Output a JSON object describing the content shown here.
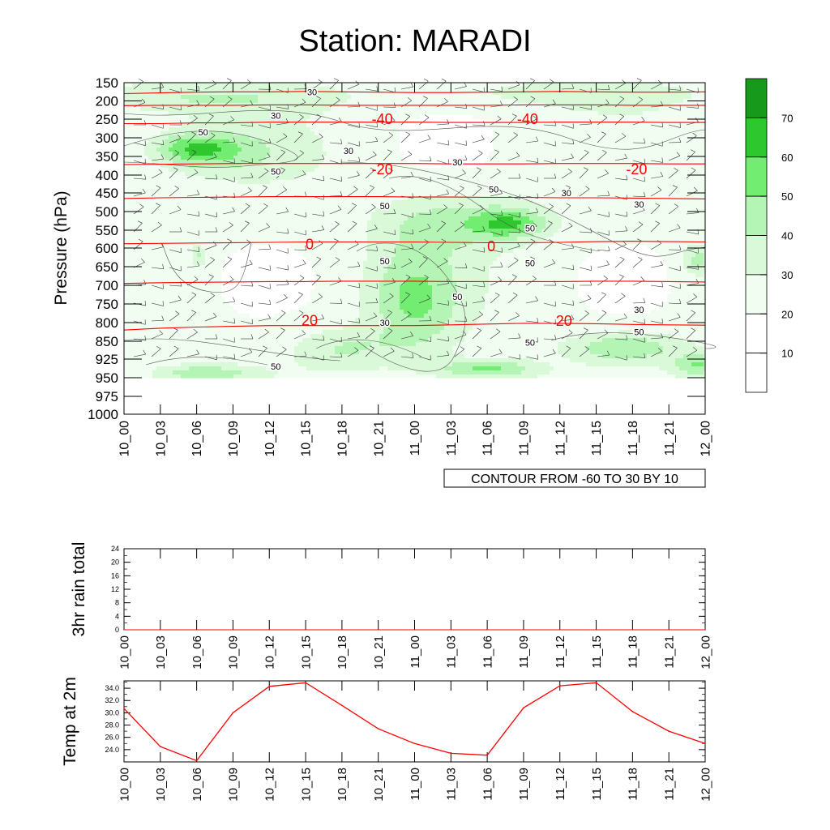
{
  "title": "Station: MARADI",
  "time_labels": [
    "10_00",
    "10_03",
    "10_06",
    "10_09",
    "10_12",
    "10_15",
    "10_18",
    "10_21",
    "11_00",
    "11_03",
    "11_06",
    "11_09",
    "11_12",
    "11_15",
    "11_18",
    "11_21",
    "12_00"
  ],
  "colors": {
    "shade": [
      "#ffffff",
      "#ffffff",
      "#f0fdf0",
      "#d9f9d9",
      "#b4f4b4",
      "#72ed72",
      "#2ec82e",
      "#17991b"
    ],
    "temp_contour": "#ff0000",
    "temp_series": "#ff0000",
    "axis": "#000000"
  },
  "chart_data": [
    {
      "type": "heatmap",
      "ylabel": "Pressure (hPa)",
      "pressure_ticks": [
        150,
        200,
        250,
        300,
        350,
        400,
        450,
        500,
        550,
        600,
        650,
        700,
        750,
        800,
        850,
        925,
        950,
        975,
        1000
      ],
      "shaded_field_bottom_level": 950,
      "colorbar": {
        "levels": [
          10,
          20,
          30,
          40,
          50,
          60,
          70
        ],
        "labels": [
          "10",
          "20",
          "30",
          "40",
          "50",
          "60",
          "70"
        ]
      },
      "humidity_contour_labels": [
        {
          "text": "30",
          "t": "10_15",
          "p": 175
        },
        {
          "text": "30",
          "t": "10_12",
          "p": 240
        },
        {
          "text": "50",
          "t": "10_06",
          "p": 285
        },
        {
          "text": "30",
          "t": "10_18",
          "p": 335
        },
        {
          "text": "50",
          "t": "10_12",
          "p": 390
        },
        {
          "text": "30",
          "t": "11_03",
          "p": 365
        },
        {
          "text": "50",
          "t": "11_06",
          "p": 440
        },
        {
          "text": "50",
          "t": "10_21",
          "p": 485
        },
        {
          "text": "30",
          "t": "11_12",
          "p": 450
        },
        {
          "text": "30",
          "t": "11_18",
          "p": 480
        },
        {
          "text": "50",
          "t": "11_09",
          "p": 545
        },
        {
          "text": "50",
          "t": "10_21",
          "p": 635
        },
        {
          "text": "50",
          "t": "11_09",
          "p": 640
        },
        {
          "text": "50",
          "t": "11_03",
          "p": 730
        },
        {
          "text": "30",
          "t": "11_18",
          "p": 765
        },
        {
          "text": "30",
          "t": "10_21",
          "p": 800
        },
        {
          "text": "50",
          "t": "11_18",
          "p": 825
        },
        {
          "text": "50",
          "t": "11_09",
          "p": 855
        },
        {
          "text": "50",
          "t": "10_12",
          "p": 935
        }
      ],
      "temperature_contours": [
        {
          "value": -50,
          "p": [
            180,
            178,
            176,
            175,
            175,
            174,
            175,
            176,
            177,
            177,
            176,
            175,
            174,
            175,
            176,
            176,
            175
          ]
        },
        {
          "value": -40,
          "p": [
            213,
            212,
            212,
            212,
            211,
            211,
            212,
            212,
            212,
            212,
            212,
            211,
            211,
            211,
            212,
            212,
            212
          ]
        },
        {
          "value": -30,
          "p": [
            262,
            262,
            260,
            260,
            258,
            258,
            258,
            258,
            258,
            259,
            259,
            259,
            258,
            258,
            258,
            259,
            259
          ]
        },
        {
          "value": -20,
          "p": [
            372,
            371,
            370,
            369,
            369,
            369,
            369,
            369,
            369,
            370,
            370,
            370,
            369,
            369,
            369,
            370,
            370
          ]
        },
        {
          "value": -10,
          "p": [
            465,
            463,
            462,
            461,
            460,
            460,
            460,
            460,
            461,
            461,
            462,
            462,
            463,
            463,
            464,
            465,
            466
          ]
        },
        {
          "value": 0,
          "p": [
            588,
            587,
            586,
            585,
            584,
            583,
            583,
            583,
            583,
            584,
            585,
            585,
            584,
            582,
            581,
            582,
            583
          ]
        },
        {
          "value": 10,
          "p": [
            695,
            693,
            692,
            691,
            690,
            690,
            689,
            689,
            689,
            690,
            690,
            690,
            690,
            689,
            689,
            690,
            691
          ]
        },
        {
          "value": 20,
          "p": [
            820,
            815,
            812,
            810,
            808,
            808,
            808,
            808,
            808,
            806,
            804,
            802,
            802,
            803,
            805,
            806,
            807
          ]
        }
      ],
      "temperature_contour_labels": [
        {
          "text": "-40",
          "t": "10_21",
          "p": 250
        },
        {
          "text": "-40",
          "t": "11_09",
          "p": 250
        },
        {
          "text": "-20",
          "t": "10_21",
          "p": 385
        },
        {
          "text": "-20",
          "t": "11_18",
          "p": 385
        },
        {
          "text": "0",
          "t": "10_15",
          "p": 590
        },
        {
          "text": "0",
          "t": "11_06",
          "p": 596
        },
        {
          "text": "20",
          "t": "10_15",
          "p": 795
        },
        {
          "text": "20",
          "t": "11_12",
          "p": 796
        }
      ],
      "info_label": "CONTOUR FROM -60 TO 30 BY 10"
    },
    {
      "type": "line",
      "ylabel": "3hr rain total",
      "ylim": [
        0,
        24
      ],
      "y_ticks": [
        0,
        4,
        8,
        12,
        16,
        20,
        24
      ],
      "values": [
        0,
        0,
        0,
        0,
        0,
        0,
        0,
        0,
        0,
        0,
        0,
        0,
        0,
        0,
        0,
        0,
        0
      ]
    },
    {
      "type": "line",
      "ylabel": "Temp at 2m",
      "ylim": [
        22.0,
        35.2
      ],
      "y_ticks": [
        "24.0",
        "26.0",
        "28.0",
        "30.0",
        "32.0",
        "34.0"
      ],
      "values": [
        30.7,
        24.5,
        22.2,
        30.0,
        34.3,
        34.9,
        31.2,
        27.4,
        25.0,
        23.4,
        23.1,
        30.8,
        34.4,
        34.9,
        30.2,
        27.0,
        25.0
      ]
    }
  ]
}
